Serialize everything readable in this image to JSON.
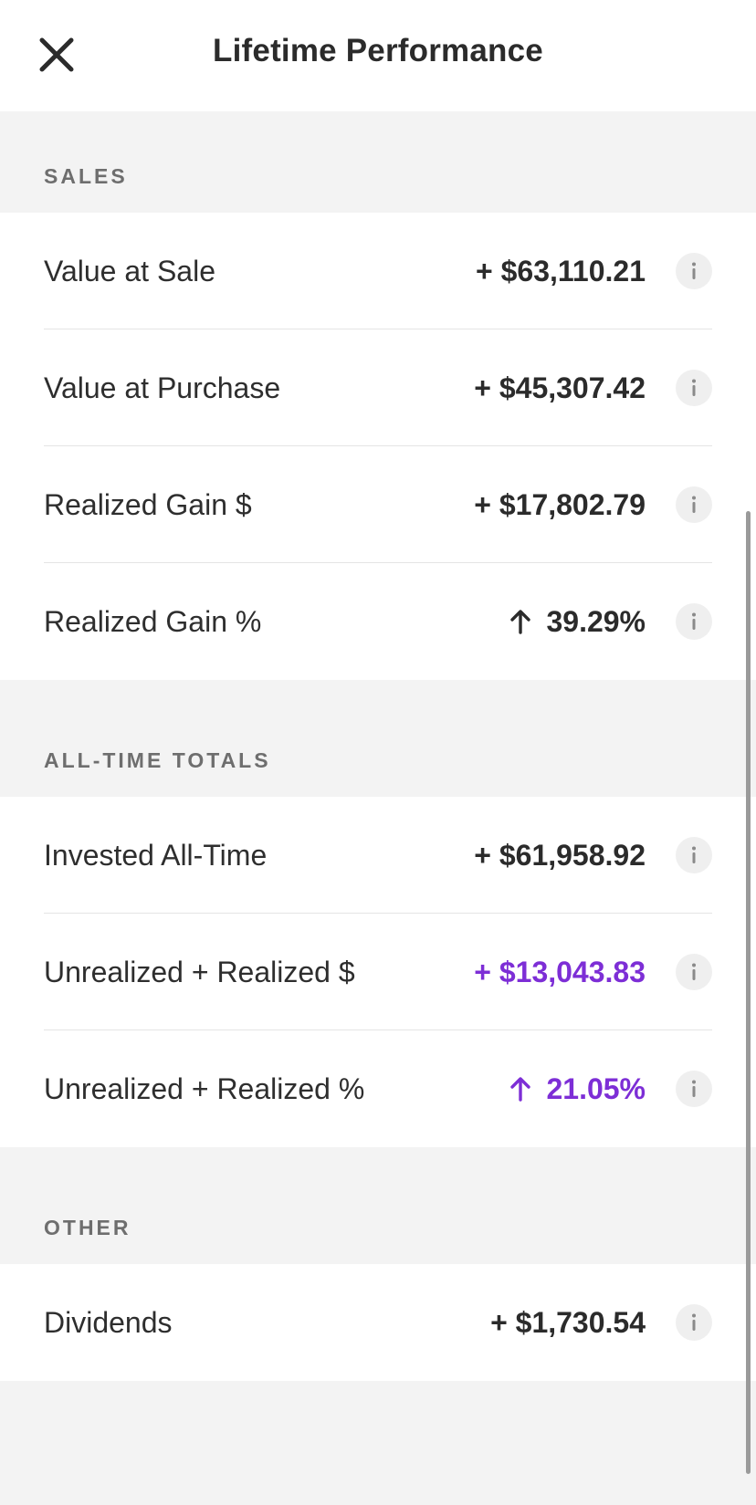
{
  "header": {
    "title": "Lifetime Performance",
    "close_icon": "close-icon"
  },
  "sections": {
    "sales": {
      "label": "SALES",
      "rows": [
        {
          "label": "Value at Sale",
          "value": "+ $63,110.21"
        },
        {
          "label": "Value at Purchase",
          "value": "+ $45,307.42"
        },
        {
          "label": "Realized Gain $",
          "value": "+ $17,802.79"
        },
        {
          "label": "Realized Gain %",
          "value": "39.29%",
          "icon": "arrow-up-icon"
        }
      ]
    },
    "totals": {
      "label": "ALL-TIME TOTALS",
      "rows": [
        {
          "label": "Invested All-Time",
          "value": "+ $61,958.92"
        },
        {
          "label": "Unrealized + Realized $",
          "value": "+ $13,043.83"
        },
        {
          "label": "Unrealized + Realized %",
          "value": "21.05%",
          "icon": "arrow-up-icon"
        }
      ]
    },
    "other": {
      "label": "OTHER",
      "rows": [
        {
          "label": "Dividends",
          "value": "+ $1,730.54"
        }
      ]
    }
  },
  "colors": {
    "accent": "#7d2ed6",
    "text": "#2b2b2b",
    "section_label": "#6e6e6e",
    "background": "#f3f3f3"
  }
}
